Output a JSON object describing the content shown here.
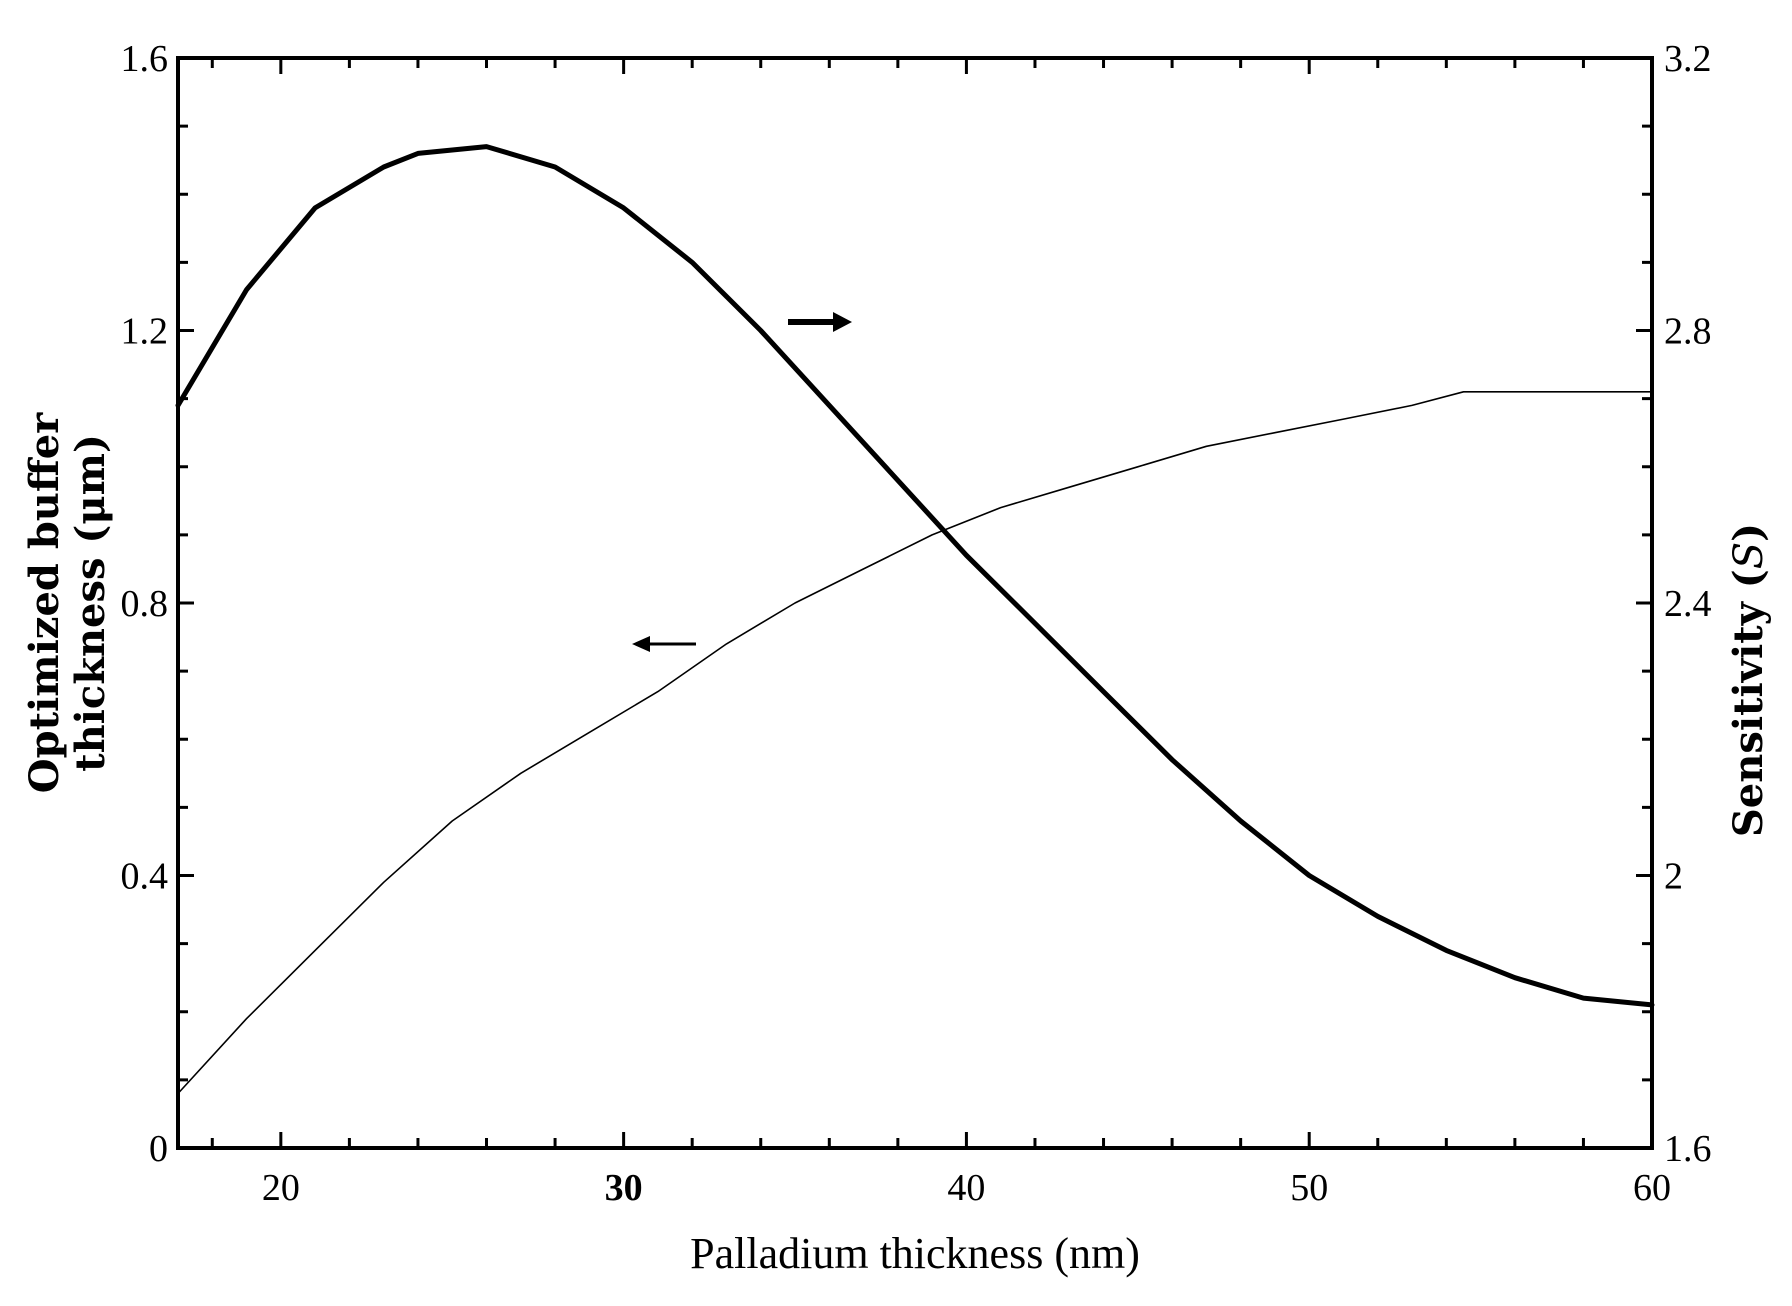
{
  "chart_data": {
    "type": "line",
    "title": "",
    "xlabel": "Palladium thickness (nm)",
    "ylabel_left_line1": "Optimized buffer",
    "ylabel_left_line2": "thickness (μm)",
    "ylabel_right_prefix": "Sensitivity (",
    "ylabel_right_symbol": "S",
    "ylabel_right_suffix": ")",
    "xlim": [
      17,
      60
    ],
    "ylim_left": [
      0,
      1.6
    ],
    "ylim_right": [
      1.6,
      3.2
    ],
    "x_ticks": [
      {
        "value": 20,
        "label": "20"
      },
      {
        "value": 30,
        "label": "30"
      },
      {
        "value": 40,
        "label": "40"
      },
      {
        "value": 50,
        "label": "50"
      },
      {
        "value": 60,
        "label": "60"
      }
    ],
    "y_ticks_left": [
      {
        "value": 0,
        "label": "0"
      },
      {
        "value": 0.4,
        "label": "0.4"
      },
      {
        "value": 0.8,
        "label": "0.8"
      },
      {
        "value": 1.2,
        "label": "1.2"
      },
      {
        "value": 1.6,
        "label": "1.6"
      }
    ],
    "y_ticks_right": [
      {
        "value": 1.6,
        "label": "1.6"
      },
      {
        "value": 2.0,
        "label": "2"
      },
      {
        "value": 2.4,
        "label": "2.4"
      },
      {
        "value": 2.8,
        "label": "2.8"
      },
      {
        "value": 3.2,
        "label": "3.2"
      }
    ],
    "grid": false,
    "legend": "none",
    "series": [
      {
        "axis": "left",
        "style": "thin",
        "color": "#000000",
        "points": [
          [
            17,
            0.08
          ],
          [
            19,
            0.19
          ],
          [
            21,
            0.29
          ],
          [
            23,
            0.39
          ],
          [
            25,
            0.48
          ],
          [
            27,
            0.55
          ],
          [
            29,
            0.61
          ],
          [
            31,
            0.67
          ],
          [
            33,
            0.74
          ],
          [
            35,
            0.8
          ],
          [
            37,
            0.85
          ],
          [
            39,
            0.9
          ],
          [
            41,
            0.94
          ],
          [
            43,
            0.97
          ],
          [
            45,
            1.0
          ],
          [
            47,
            1.03
          ],
          [
            49,
            1.05
          ],
          [
            51,
            1.07
          ],
          [
            53,
            1.09
          ],
          [
            54.5,
            1.11
          ],
          [
            57,
            1.11
          ],
          [
            60,
            1.11
          ]
        ]
      },
      {
        "axis": "right",
        "style": "thick",
        "color": "#000000",
        "points": [
          [
            17,
            2.69
          ],
          [
            19,
            2.86
          ],
          [
            21,
            2.98
          ],
          [
            23,
            3.04
          ],
          [
            24,
            3.06
          ],
          [
            26,
            3.07
          ],
          [
            28,
            3.04
          ],
          [
            30,
            2.98
          ],
          [
            32,
            2.9
          ],
          [
            34,
            2.8
          ],
          [
            36,
            2.69
          ],
          [
            38,
            2.58
          ],
          [
            40,
            2.47
          ],
          [
            42,
            2.37
          ],
          [
            44,
            2.27
          ],
          [
            46,
            2.17
          ],
          [
            48,
            2.08
          ],
          [
            50,
            2.0
          ],
          [
            52,
            1.94
          ],
          [
            54,
            1.89
          ],
          [
            56,
            1.85
          ],
          [
            58,
            1.82
          ],
          [
            60,
            1.81
          ]
        ]
      }
    ],
    "annotations": [
      {
        "type": "arrow",
        "direction": "right",
        "series": "right-axis curve",
        "x": 36,
        "y_right": 2.8
      },
      {
        "type": "arrow",
        "direction": "left",
        "series": "left-axis curve",
        "x": 32,
        "y_left": 0.74
      }
    ]
  }
}
